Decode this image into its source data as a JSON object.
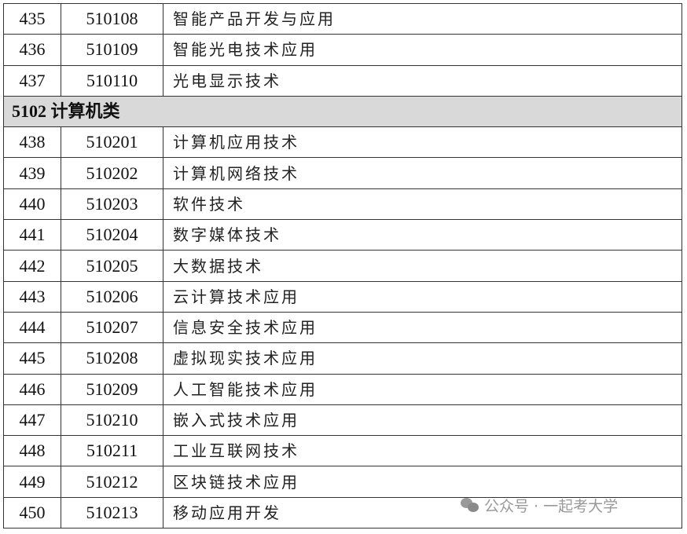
{
  "section_header": "5102 计算机类",
  "rows_before": [
    {
      "no": "435",
      "code": "510108",
      "name": "智能产品开发与应用"
    },
    {
      "no": "436",
      "code": "510109",
      "name": "智能光电技术应用"
    },
    {
      "no": "437",
      "code": "510110",
      "name": "光电显示技术"
    }
  ],
  "rows_after": [
    {
      "no": "438",
      "code": "510201",
      "name": "计算机应用技术"
    },
    {
      "no": "439",
      "code": "510202",
      "name": "计算机网络技术"
    },
    {
      "no": "440",
      "code": "510203",
      "name": "软件技术"
    },
    {
      "no": "441",
      "code": "510204",
      "name": "数字媒体技术"
    },
    {
      "no": "442",
      "code": "510205",
      "name": "大数据技术"
    },
    {
      "no": "443",
      "code": "510206",
      "name": "云计算技术应用"
    },
    {
      "no": "444",
      "code": "510207",
      "name": "信息安全技术应用"
    },
    {
      "no": "445",
      "code": "510208",
      "name": "虚拟现实技术应用"
    },
    {
      "no": "446",
      "code": "510209",
      "name": "人工智能技术应用"
    },
    {
      "no": "447",
      "code": "510210",
      "name": "嵌入式技术应用"
    },
    {
      "no": "448",
      "code": "510211",
      "name": "工业互联网技术"
    },
    {
      "no": "449",
      "code": "510212",
      "name": "区块链技术应用"
    },
    {
      "no": "450",
      "code": "510213",
      "name": "移动应用开发"
    }
  ],
  "watermark": {
    "icon": "wechat-icon",
    "text": "公众号 · 一起考大学"
  },
  "colors": {
    "section_bg": "#d9d9d9",
    "border": "#333333"
  }
}
